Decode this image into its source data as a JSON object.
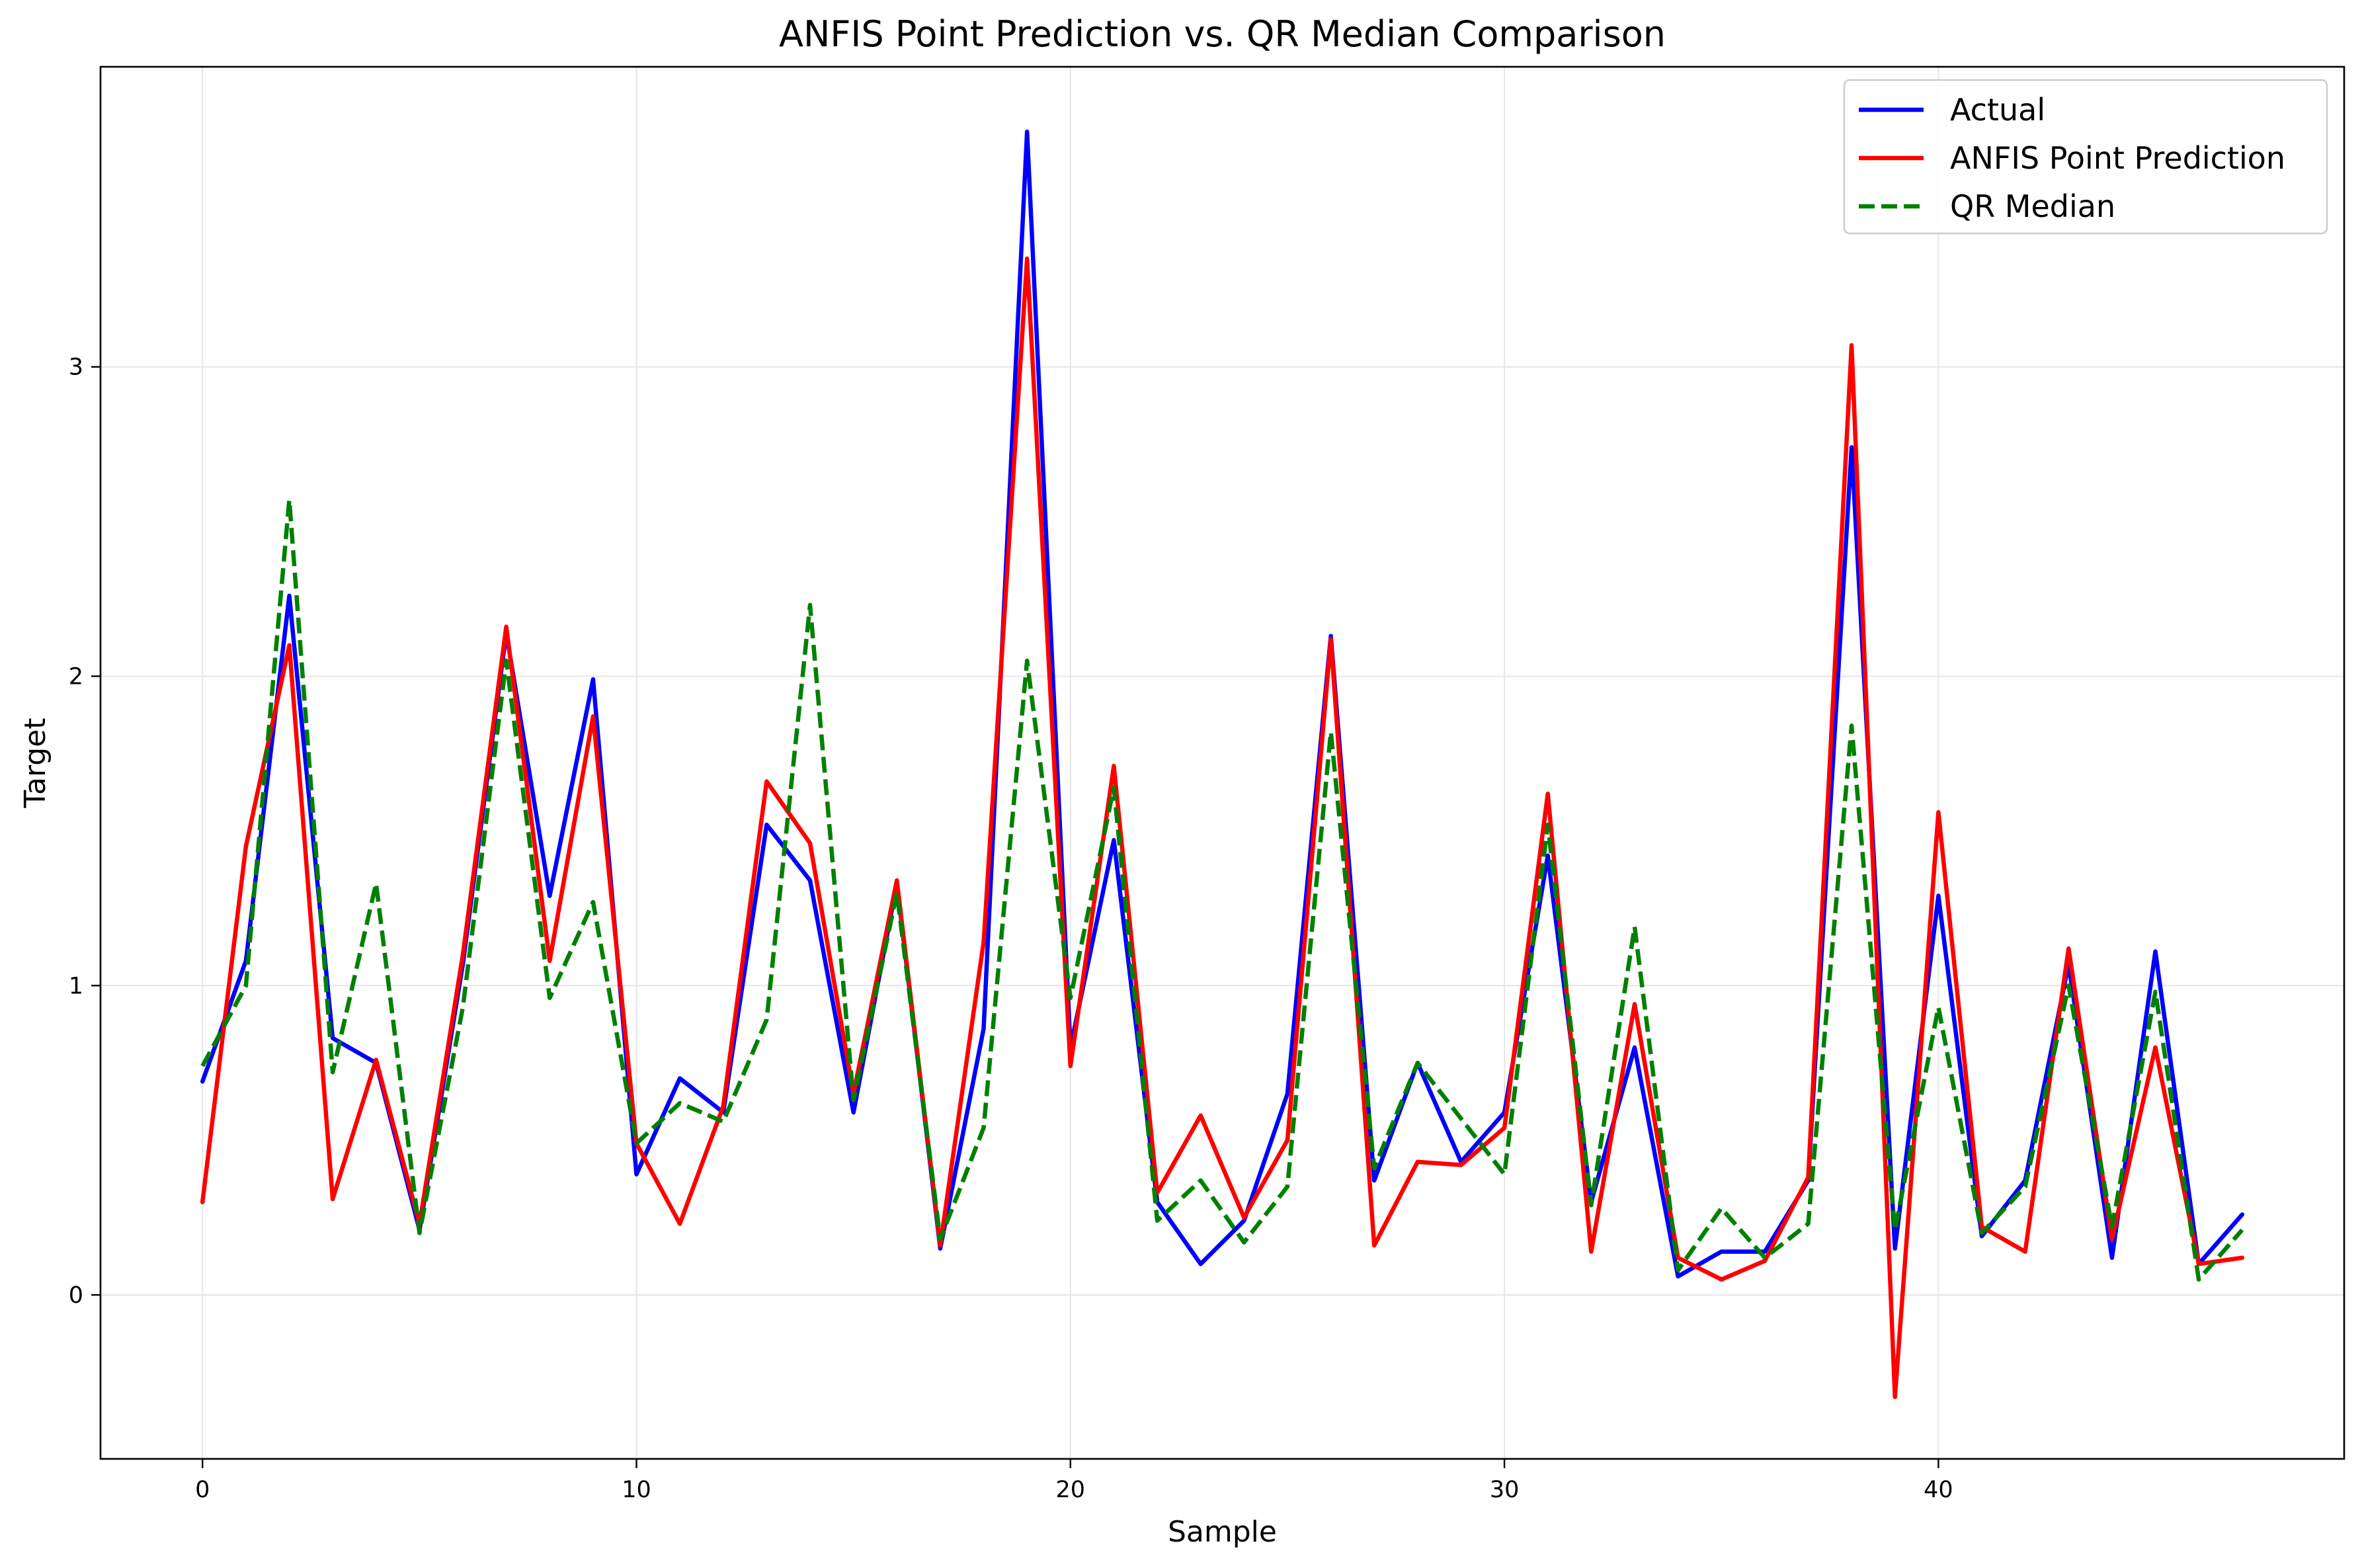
{
  "chart_data": {
    "type": "line",
    "title": "ANFIS Point Prediction vs. QR Median Comparison",
    "xlabel": "Sample",
    "ylabel": "Target",
    "xlim": [
      -2.35,
      49.35
    ],
    "ylim": [
      -0.53,
      3.97
    ],
    "xticks": [
      0,
      10,
      20,
      30,
      40
    ],
    "yticks": [
      0,
      1,
      2,
      3
    ],
    "grid": true,
    "legend": {
      "position": "upper right"
    },
    "x": [
      0,
      1,
      2,
      3,
      4,
      5,
      6,
      7,
      8,
      9,
      10,
      11,
      12,
      13,
      14,
      15,
      16,
      17,
      18,
      19,
      20,
      21,
      22,
      23,
      24,
      25,
      26,
      27,
      28,
      29,
      30,
      31,
      32,
      33,
      34,
      35,
      36,
      37,
      38,
      39,
      40,
      41,
      42,
      43,
      44,
      45,
      46,
      47
    ],
    "series": [
      {
        "name": "Actual",
        "color": "#0000ff",
        "style": "solid",
        "values": [
          0.69,
          1.08,
          2.26,
          0.83,
          0.75,
          0.21,
          1.07,
          2.14,
          1.29,
          1.99,
          0.39,
          0.7,
          0.59,
          1.52,
          1.34,
          0.59,
          1.33,
          0.15,
          0.86,
          3.76,
          0.8,
          1.47,
          0.3,
          0.1,
          0.24,
          0.65,
          2.13,
          0.37,
          0.75,
          0.43,
          0.59,
          1.42,
          0.3,
          0.8,
          0.06,
          0.14,
          0.14,
          0.37,
          2.74,
          0.15,
          1.29,
          0.19,
          0.37,
          1.07,
          0.12,
          1.11,
          0.1,
          0.26
        ]
      },
      {
        "name": "ANFIS Point Prediction",
        "color": "#ff0000",
        "style": "solid",
        "values": [
          0.3,
          1.45,
          2.1,
          0.31,
          0.76,
          0.23,
          1.1,
          2.16,
          1.08,
          1.87,
          0.49,
          0.23,
          0.61,
          1.66,
          1.46,
          0.65,
          1.34,
          0.16,
          1.14,
          3.35,
          0.74,
          1.71,
          0.33,
          0.58,
          0.25,
          0.5,
          2.12,
          0.16,
          0.43,
          0.42,
          0.54,
          1.62,
          0.14,
          0.94,
          0.12,
          0.05,
          0.11,
          0.38,
          3.07,
          -0.33,
          1.56,
          0.22,
          0.14,
          1.12,
          0.18,
          0.8,
          0.1,
          0.12
        ]
      },
      {
        "name": "QR Median",
        "color": "#008000",
        "style": "dashed",
        "values": [
          0.74,
          1.0,
          2.57,
          0.72,
          1.33,
          0.2,
          0.93,
          2.05,
          0.96,
          1.27,
          0.49,
          0.62,
          0.56,
          0.89,
          2.23,
          0.63,
          1.3,
          0.18,
          0.54,
          2.05,
          0.96,
          1.64,
          0.24,
          0.37,
          0.17,
          0.35,
          1.82,
          0.41,
          0.75,
          0.57,
          0.39,
          1.52,
          0.29,
          1.19,
          0.08,
          0.28,
          0.12,
          0.23,
          1.84,
          0.21,
          0.93,
          0.2,
          0.35,
          1.0,
          0.22,
          0.98,
          0.05,
          0.21
        ]
      }
    ]
  }
}
